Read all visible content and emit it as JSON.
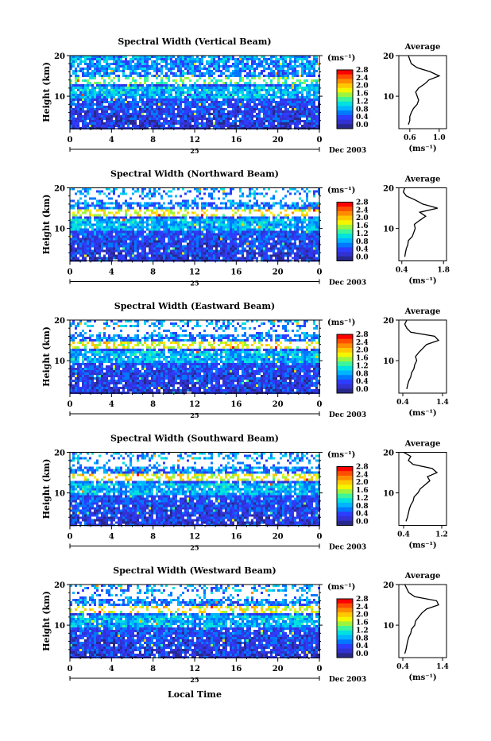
{
  "page": {
    "colorbar_unit": "(ms⁻¹)",
    "colorbar_ticks": [
      "2.8",
      "2.4",
      "2.0",
      "1.6",
      "1.2",
      "0.8",
      "0.4",
      "0.0"
    ],
    "colorbar_colors": [
      "#ff0000",
      "#ff4d00",
      "#ff8c00",
      "#ffc800",
      "#f5f500",
      "#9cf53c",
      "#3cf59c",
      "#00e1e1",
      "#00b4ff",
      "#0078ff",
      "#2d3cff",
      "#3232d2",
      "#28288c"
    ],
    "x_ticks": [
      "0",
      "4",
      "8",
      "12",
      "16",
      "20",
      "0"
    ],
    "y_ticks": [
      "20",
      "10"
    ],
    "date_label": "Dec 2003",
    "day_label": "25",
    "y_axis_label": "Height (km)",
    "x_axis_label": "Local Time",
    "avg_title": "Average",
    "avg_unit": "(ms⁻¹)"
  },
  "chart_data": [
    {
      "type": "heatmap",
      "title": "Spectral Width (Vertical Beam)",
      "ylabel": "Height (km)",
      "x_range": [
        0,
        24
      ],
      "y_range": [
        2,
        20
      ],
      "colorbar_range": [
        0.0,
        2.8
      ],
      "average_profile": {
        "type": "line",
        "xticks": [
          "0.6",
          "1.0"
        ],
        "xlim": [
          0.45,
          1.1
        ],
        "heights": [
          3,
          4,
          5,
          6,
          7,
          8,
          9,
          10,
          11,
          12,
          13,
          14,
          15,
          16,
          17,
          18,
          19,
          20
        ],
        "values": [
          0.58,
          0.6,
          0.6,
          0.62,
          0.65,
          0.7,
          0.72,
          0.7,
          0.68,
          0.72,
          0.8,
          0.86,
          1.0,
          0.88,
          0.7,
          0.62,
          0.6,
          0.58
        ]
      }
    },
    {
      "type": "heatmap",
      "title": "Spectral Width (Northward Beam)",
      "ylabel": "Height (km)",
      "x_range": [
        0,
        24
      ],
      "y_range": [
        2,
        20
      ],
      "colorbar_range": [
        0.0,
        2.8
      ],
      "average_profile": {
        "type": "line",
        "xticks": [
          "0.4",
          "1.8"
        ],
        "xlim": [
          0.3,
          1.9
        ],
        "heights": [
          3,
          4,
          5,
          6,
          7,
          8,
          9,
          10,
          11,
          12,
          13,
          14,
          15,
          16,
          17,
          18,
          19,
          20
        ],
        "values": [
          0.5,
          0.52,
          0.55,
          0.6,
          0.62,
          0.75,
          0.8,
          0.85,
          0.82,
          1.0,
          1.2,
          1.0,
          1.6,
          1.1,
          0.85,
          0.55,
          0.45,
          0.5
        ]
      }
    },
    {
      "type": "heatmap",
      "title": "Spectral Width (Eastward Beam)",
      "ylabel": "Height (km)",
      "x_range": [
        0,
        24
      ],
      "y_range": [
        2,
        20
      ],
      "colorbar_range": [
        0.0,
        2.8
      ],
      "average_profile": {
        "type": "line",
        "xticks": [
          "0.4",
          "1.4"
        ],
        "xlim": [
          0.3,
          1.5
        ],
        "heights": [
          3,
          4,
          5,
          6,
          7,
          8,
          9,
          10,
          11,
          12,
          13,
          14,
          15,
          16,
          17,
          18,
          19,
          20
        ],
        "values": [
          0.5,
          0.52,
          0.55,
          0.6,
          0.62,
          0.68,
          0.7,
          0.75,
          0.72,
          0.8,
          0.9,
          1.0,
          1.3,
          1.2,
          0.6,
          0.5,
          0.45,
          0.5
        ]
      }
    },
    {
      "type": "heatmap",
      "title": "Spectral Width (Southward Beam)",
      "ylabel": "Height (km)",
      "x_range": [
        0,
        24
      ],
      "y_range": [
        2,
        20
      ],
      "colorbar_range": [
        0.0,
        2.8
      ],
      "average_profile": {
        "type": "line",
        "xticks": [
          "0.4",
          "1.2"
        ],
        "xlim": [
          0.3,
          1.3
        ],
        "heights": [
          3,
          4,
          5,
          6,
          7,
          8,
          9,
          10,
          11,
          12,
          13,
          14,
          15,
          16,
          17,
          18,
          19,
          20
        ],
        "values": [
          0.45,
          0.48,
          0.5,
          0.52,
          0.55,
          0.6,
          0.62,
          0.7,
          0.75,
          0.85,
          0.95,
          0.9,
          1.1,
          1.0,
          0.6,
          0.5,
          0.55,
          0.4
        ]
      }
    },
    {
      "type": "heatmap",
      "title": "Spectral Width (Westward Beam)",
      "ylabel": "Height (km)",
      "x_range": [
        0,
        24
      ],
      "y_range": [
        2,
        20
      ],
      "colorbar_range": [
        0.0,
        2.8
      ],
      "average_profile": {
        "type": "line",
        "xticks": [
          "0.4",
          "1.4"
        ],
        "xlim": [
          0.3,
          1.5
        ],
        "heights": [
          3,
          4,
          5,
          6,
          7,
          8,
          9,
          10,
          11,
          12,
          13,
          14,
          15,
          16,
          17,
          18,
          19,
          20
        ],
        "values": [
          0.45,
          0.48,
          0.5,
          0.52,
          0.55,
          0.6,
          0.62,
          0.7,
          0.72,
          0.8,
          0.88,
          1.0,
          1.3,
          1.25,
          0.7,
          0.55,
          0.5,
          0.45
        ]
      }
    }
  ]
}
